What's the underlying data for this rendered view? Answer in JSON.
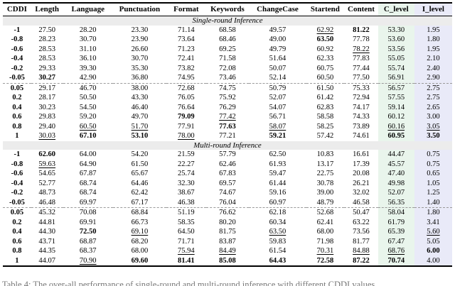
{
  "colors": {
    "c_level_bg": "#e9f5ec",
    "i_level_bg": "#e9eaf8",
    "banner_bg": "#ececec",
    "rule": "#000000",
    "dashed_rule": "#9a9a9a"
  },
  "caption": {
    "text": "Table 4: The over-all performance of single-round and multi-round inference with different CDDI values."
  },
  "chart_data": {
    "type": "table",
    "columns": [
      "CDDI",
      "Length",
      "Language",
      "Punctuation",
      "Format",
      "Keywords",
      "ChangeCase",
      "Startend",
      "Content",
      "C_level",
      "I_level"
    ],
    "style_legend": "per-cell style string: b=bold(best), u=underline(second best), .=normal",
    "sections": [
      {
        "title": "Single-round Inference",
        "rows": [
          {
            "cells": [
              "-1",
              "27.50",
              "28.20",
              "23.30",
              "71.14",
              "68.58",
              "49.57",
              "62.92",
              "81.22",
              "53.30",
              "1.95"
            ],
            "styles": "b......ub..",
            "dashed_above": false
          },
          {
            "cells": [
              "-0.8",
              "28.23",
              "30.70",
              "23.90",
              "73.64",
              "68.46",
              "49.00",
              "63.50",
              "77.78",
              "53.60",
              "1.80"
            ],
            "styles": "b......b...",
            "dashed_above": false
          },
          {
            "cells": [
              "-0.6",
              "28.53",
              "31.10",
              "26.60",
              "71.23",
              "69.25",
              "49.79",
              "60.92",
              "78.22",
              "53.56",
              "1.95"
            ],
            "styles": "b.......u..",
            "dashed_above": false
          },
          {
            "cells": [
              "-0.4",
              "28.53",
              "36.10",
              "30.70",
              "72.41",
              "71.58",
              "51.64",
              "62.33",
              "77.83",
              "55.05",
              "2.10"
            ],
            "styles": "b..........",
            "dashed_above": false
          },
          {
            "cells": [
              "-0.2",
              "29.33",
              "39.30",
              "35.30",
              "73.82",
              "72.08",
              "50.07",
              "60.75",
              "77.44",
              "55.74",
              "2.40"
            ],
            "styles": "b..........",
            "dashed_above": false
          },
          {
            "cells": [
              "-0.05",
              "30.27",
              "42.90",
              "36.80",
              "74.95",
              "73.46",
              "52.14",
              "60.50",
              "77.50",
              "56.91",
              "2.90"
            ],
            "styles": "bb.........",
            "dashed_above": false
          },
          {
            "cells": [
              "0.05",
              "29.17",
              "46.70",
              "38.00",
              "72.68",
              "74.75",
              "50.79",
              "61.50",
              "75.33",
              "56.57",
              "2.75"
            ],
            "styles": "b..........",
            "dashed_above": true
          },
          {
            "cells": [
              "0.2",
              "28.17",
              "50.50",
              "43.30",
              "76.05",
              "75.92",
              "52.07",
              "61.42",
              "72.94",
              "57.55",
              "2.75"
            ],
            "styles": "b..........",
            "dashed_above": false
          },
          {
            "cells": [
              "0.4",
              "30.23",
              "54.50",
              "46.40",
              "76.64",
              "76.29",
              "54.07",
              "62.83",
              "74.17",
              "59.14",
              "2.65"
            ],
            "styles": "b..........",
            "dashed_above": false
          },
          {
            "cells": [
              "0.6",
              "29.83",
              "59.20",
              "49.70",
              "79.09",
              "77.42",
              "56.71",
              "58.58",
              "74.33",
              "60.12",
              "3.00"
            ],
            "styles": "b...bu.....",
            "dashed_above": false
          },
          {
            "cells": [
              "0.8",
              "29.40",
              "60.50",
              "51.70",
              "77.91",
              "77.63",
              "58.07",
              "58.25",
              "73.89",
              "60.16",
              "3.05"
            ],
            "styles": "b.uu.bu..uu",
            "dashed_above": false
          },
          {
            "cells": [
              "1",
              "30.03",
              "67.10",
              "53.10",
              "78.00",
              "77.21",
              "59.21",
              "57.42",
              "74.61",
              "60.95",
              "3.50"
            ],
            "styles": "bubbu.b..bb",
            "dashed_above": false
          }
        ]
      },
      {
        "title": "Multi-round Inference",
        "rows": [
          {
            "cells": [
              "-1",
              "62.60",
              "64.00",
              "54.20",
              "21.59",
              "57.79",
              "62.50",
              "10.83",
              "16.61",
              "44.47",
              "0.75"
            ],
            "styles": "bb.........",
            "dashed_above": false
          },
          {
            "cells": [
              "-0.8",
              "59.63",
              "64.90",
              "61.50",
              "22.27",
              "62.46",
              "61.93",
              "13.17",
              "17.39",
              "45.57",
              "0.75"
            ],
            "styles": "bu.........",
            "dashed_above": false
          },
          {
            "cells": [
              "-0.6",
              "54.65",
              "67.87",
              "65.67",
              "25.74",
              "67.83",
              "59.47",
              "22.75",
              "20.08",
              "47.40",
              "0.65"
            ],
            "styles": "b..........",
            "dashed_above": false
          },
          {
            "cells": [
              "-0.4",
              "52.77",
              "68.74",
              "64.46",
              "32.30",
              "69.57",
              "61.44",
              "30.78",
              "26.21",
              "49.98",
              "1.05"
            ],
            "styles": "b..........",
            "dashed_above": false
          },
          {
            "cells": [
              "-0.2",
              "48.73",
              "68.74",
              "62.42",
              "38.67",
              "74.67",
              "59.16",
              "39.00",
              "32.02",
              "52.07",
              "1.25"
            ],
            "styles": "b..........",
            "dashed_above": false
          },
          {
            "cells": [
              "-0.05",
              "46.48",
              "69.97",
              "67.17",
              "46.38",
              "76.04",
              "60.97",
              "48.79",
              "46.58",
              "56.35",
              "1.40"
            ],
            "styles": "b..........",
            "dashed_above": false
          },
          {
            "cells": [
              "0.05",
              "45.32",
              "70.08",
              "68.84",
              "51.19",
              "76.62",
              "62.18",
              "52.68",
              "50.47",
              "58.04",
              "1.80"
            ],
            "styles": "b..........",
            "dashed_above": true
          },
          {
            "cells": [
              "0.2",
              "44.81",
              "69.91",
              "66.73",
              "58.35",
              "80.20",
              "60.34",
              "62.41",
              "63.22",
              "61.79",
              "3.41"
            ],
            "styles": "b..........",
            "dashed_above": false
          },
          {
            "cells": [
              "0.4",
              "44.30",
              "72.50",
              "69.10",
              "64.50",
              "81.75",
              "63.50",
              "68.00",
              "73.56",
              "65.39",
              "5.60"
            ],
            "styles": "b.bu..u...u",
            "dashed_above": false
          },
          {
            "cells": [
              "0.6",
              "43.71",
              "68.87",
              "68.20",
              "71.71",
              "83.87",
              "59.83",
              "71.98",
              "81.77",
              "67.47",
              "5.05"
            ],
            "styles": "b..........",
            "dashed_above": false
          },
          {
            "cells": [
              "0.8",
              "44.35",
              "68.37",
              "68.00",
              "75.94",
              "84.49",
              "61.54",
              "70.31",
              "84.88",
              "68.76",
              "6.00"
            ],
            "styles": "b...uu.uuub",
            "dashed_above": false
          },
          {
            "cells": [
              "1",
              "44.07",
              "70.90",
              "69.60",
              "81.41",
              "85.08",
              "64.43",
              "72.58",
              "87.22",
              "70.74",
              "4.00"
            ],
            "styles": "b.ubbbbbbb.",
            "dashed_above": false
          }
        ]
      }
    ]
  }
}
